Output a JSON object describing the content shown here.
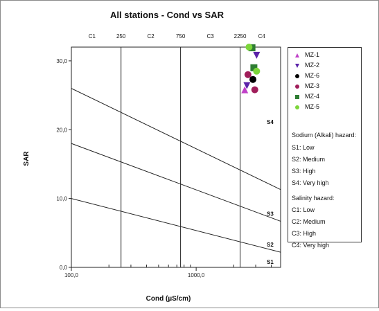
{
  "chart_data": {
    "type": "scatter",
    "title": "All stations - Cond vs SAR",
    "xlabel": "Cond (µS/cm)",
    "ylabel": "SAR",
    "x_scale": "log",
    "xlim": [
      100,
      4750
    ],
    "ylim": [
      0,
      32
    ],
    "x_tick_labels": [
      "100,0",
      "1000,0"
    ],
    "y_ticks": [
      0,
      10,
      20,
      30
    ],
    "y_tick_labels": [
      "0,0",
      "10,0",
      "20,0",
      "30,0"
    ],
    "top_zone_labels": [
      "C1",
      "250",
      "C2",
      "750",
      "C3",
      "2250",
      "C4"
    ],
    "salinity_boundaries": [
      250,
      750,
      2250
    ],
    "right_zone_labels": [
      "S4",
      "S3",
      "S2",
      "S1"
    ],
    "sodium_lines": [
      {
        "name": "S1/S2",
        "points": [
          [
            100,
            10
          ],
          [
            4750,
            2.2
          ]
        ]
      },
      {
        "name": "S2/S3",
        "points": [
          [
            100,
            18
          ],
          [
            4750,
            6.7
          ]
        ]
      },
      {
        "name": "S3/S4",
        "points": [
          [
            100,
            26
          ],
          [
            4750,
            11.3
          ]
        ]
      }
    ],
    "series": [
      {
        "name": "MZ-1",
        "color": "#c040c8",
        "marker": "triangle-up",
        "points": [
          [
            2450,
            25.8
          ]
        ]
      },
      {
        "name": "MZ-2",
        "color": "#5a22a8",
        "marker": "triangle-down",
        "points": [
          [
            2550,
            26.4
          ],
          [
            3050,
            30.8
          ]
        ]
      },
      {
        "name": "MZ-6",
        "color": "#000000",
        "marker": "circle",
        "points": [
          [
            2850,
            27.3
          ]
        ]
      },
      {
        "name": "MZ-3",
        "color": "#a01e5a",
        "marker": "circle",
        "points": [
          [
            2600,
            28.0
          ],
          [
            2950,
            25.8
          ]
        ]
      },
      {
        "name": "MZ-4",
        "color": "#2e7d32",
        "marker": "square",
        "points": [
          [
            2900,
            29.0
          ],
          [
            2800,
            31.9
          ]
        ]
      },
      {
        "name": "MZ-5",
        "color": "#7cd63a",
        "marker": "circle",
        "points": [
          [
            3050,
            28.5
          ],
          [
            2650,
            32.0
          ]
        ]
      }
    ],
    "legend_placement": "right",
    "grid": false
  },
  "legend": {
    "sodium_title": "Sodium (Alkali) hazard:",
    "sodium_items": [
      "S1: Low",
      "S2: Medium",
      "S3: High",
      "S4: Very high"
    ],
    "salinity_title": "Salinity hazard:",
    "salinity_items": [
      "C1: Low",
      "C2: Medium",
      "C3: High",
      "C4: Very high"
    ]
  }
}
